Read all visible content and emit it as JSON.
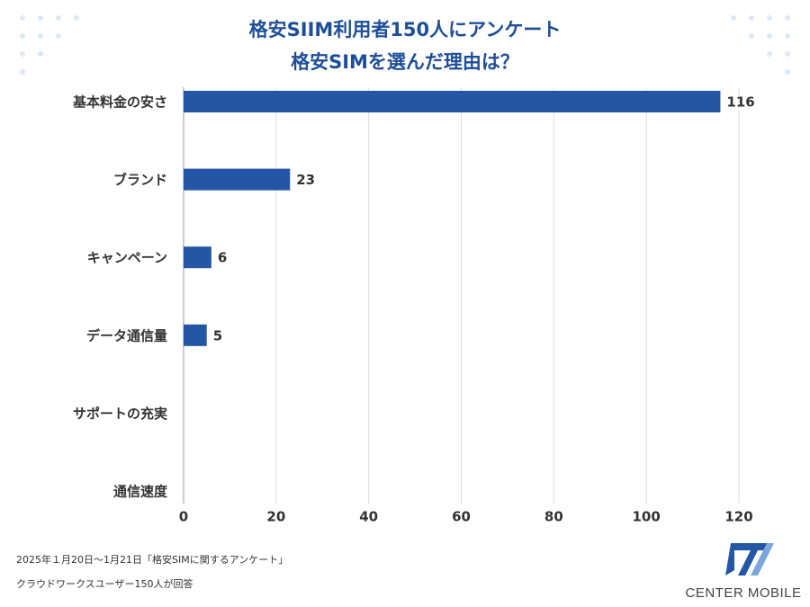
{
  "chart_data": {
    "type": "hbar",
    "title": [
      "格安SIIM利用者150人にアンケート",
      "格安SIMを選んだ理由は？"
    ],
    "categories": [
      "基本料金の安さ",
      "ブランド",
      "キャンペーン",
      "データ通信量",
      "サポートの充実",
      "通信速度"
    ],
    "values": [
      116,
      23,
      6,
      5,
      0,
      0
    ],
    "color": "#2356a4",
    "xlim": [
      0,
      120
    ],
    "xticks": [
      0,
      20,
      40,
      60,
      80,
      100,
      120
    ],
    "grid": true
  },
  "notes": [
    "2025年１月20日～1月21日「格安SIMに関するアンケート」",
    "クラウドワークスユーザー150人が回答"
  ],
  "logo": "CENTER MOBILE"
}
